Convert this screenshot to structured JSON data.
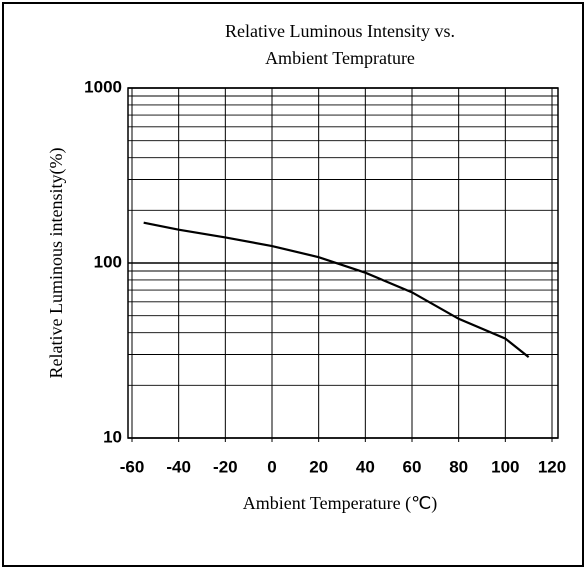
{
  "chart_data": {
    "type": "line",
    "title": [
      "Relative Luminous Intensity vs.",
      "Ambient Temprature"
    ],
    "xlabel": "Ambient Temperature (℃)",
    "ylabel": "Relative Luminous intensity(%)",
    "x": [
      -55,
      -40,
      -20,
      0,
      20,
      40,
      60,
      80,
      100,
      110
    ],
    "series": [
      {
        "name": "Relative Luminous Intensity",
        "color": "#000000",
        "values": [
          170,
          155,
          140,
          125,
          108,
          88,
          68,
          48,
          37,
          29
        ]
      }
    ],
    "xlim": [
      -60,
      120
    ],
    "xticks": [
      -60,
      -40,
      -20,
      0,
      20,
      40,
      60,
      80,
      100,
      120
    ],
    "ylim": [
      10,
      1000
    ],
    "yticks": [
      10,
      100,
      1000
    ],
    "ylog": true,
    "grid": true
  }
}
